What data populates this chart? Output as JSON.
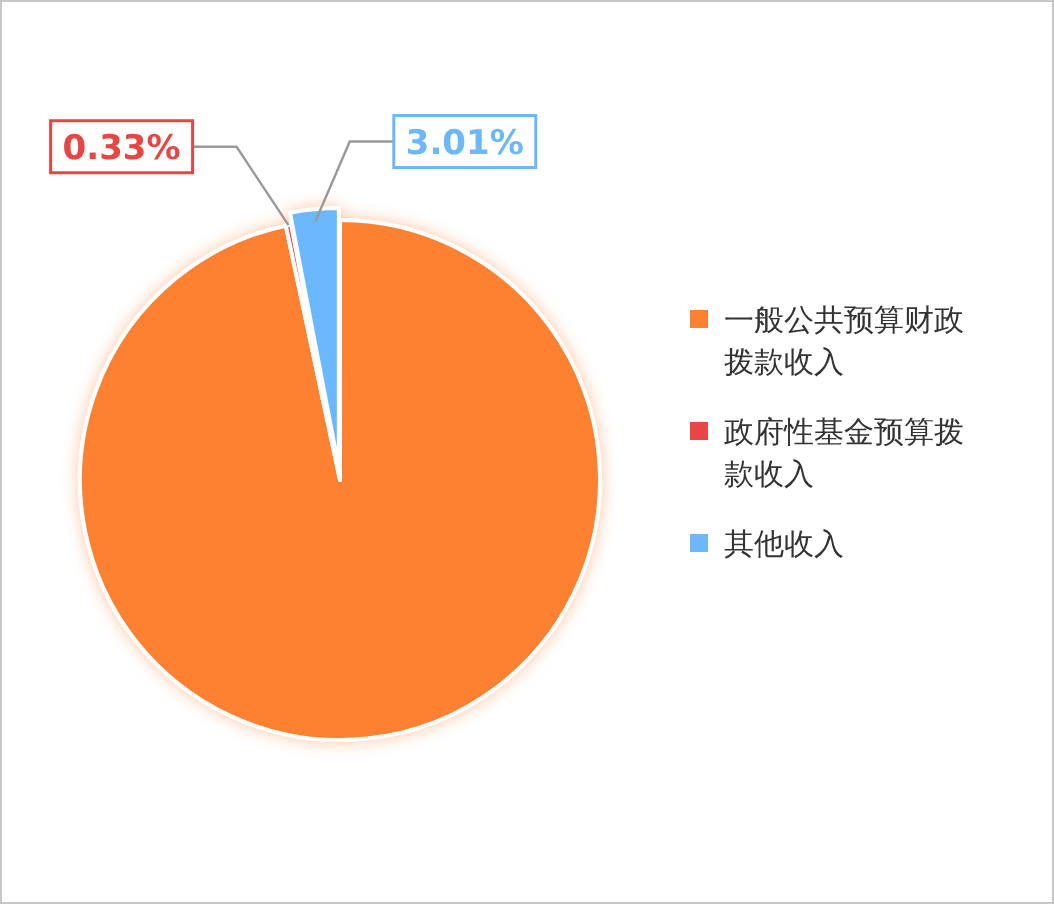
{
  "chart_data": {
    "type": "pie",
    "categories": [
      "一般公共预算财政拨款收入",
      "政府性基金预算拨款收入",
      "其他收入"
    ],
    "values": [
      96.66,
      0.33,
      3.01
    ],
    "colors": [
      "#fe8133",
      "#e84545",
      "#6cb8ff"
    ],
    "value_labels": [
      null,
      "0.33%",
      "3.01%"
    ],
    "legend": "right"
  }
}
